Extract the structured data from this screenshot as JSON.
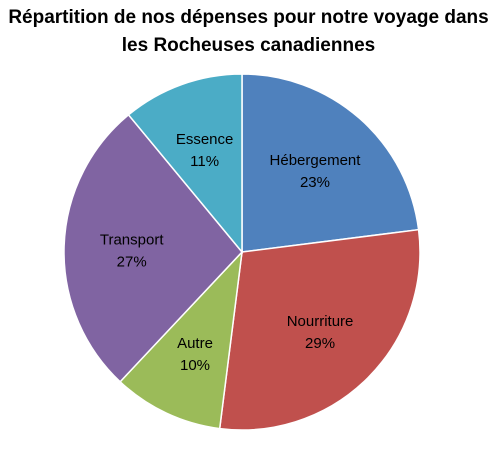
{
  "chart_data": {
    "type": "pie",
    "title_line1": "Répartition de nos dépenses pour notre voyage dans",
    "title_line2": "les Rocheuses canadiennes",
    "slices": [
      {
        "label": "Hébergement",
        "value": 23,
        "percent_label": "23%",
        "color": "#4F81BD"
      },
      {
        "label": "Nourriture",
        "value": 29,
        "percent_label": "29%",
        "color": "#C0504D"
      },
      {
        "label": "Autre",
        "value": 10,
        "percent_label": "10%",
        "color": "#9BBB59"
      },
      {
        "label": "Transport",
        "value": 27,
        "percent_label": "27%",
        "color": "#8064A2"
      },
      {
        "label": "Essence",
        "value": 11,
        "percent_label": "11%",
        "color": "#4BACC6"
      }
    ],
    "start_angle": "12 o'clock",
    "direction": "clockwise",
    "legend": "none"
  }
}
